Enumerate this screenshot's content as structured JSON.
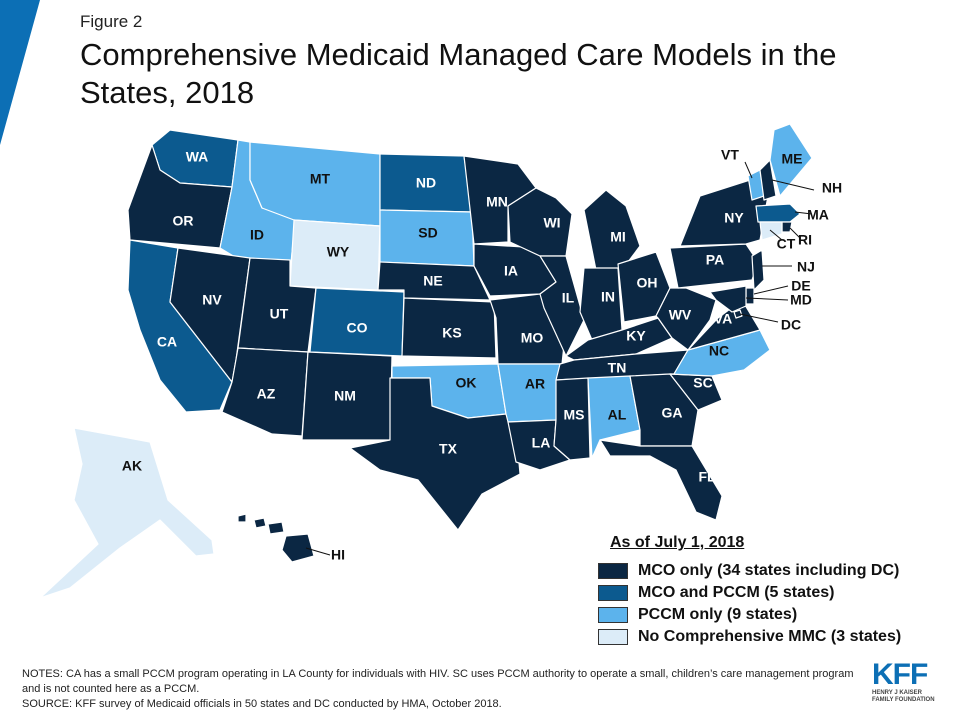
{
  "figure_label": "Figure 2",
  "title": "Comprehensive Medicaid Managed Care Models in the States, 2018",
  "colors": {
    "mco_only": "#0b2743",
    "mco_pccm": "#0c5a8f",
    "pccm_only": "#5cb3ec",
    "none": "#dcecf8",
    "corner_accent": "#0c6fb5"
  },
  "states": [
    {
      "abbr": "WA",
      "category": "mco_pccm"
    },
    {
      "abbr": "OR",
      "category": "mco_only"
    },
    {
      "abbr": "CA",
      "category": "mco_pccm"
    },
    {
      "abbr": "ID",
      "category": "pccm_only"
    },
    {
      "abbr": "NV",
      "category": "mco_only"
    },
    {
      "abbr": "MT",
      "category": "pccm_only"
    },
    {
      "abbr": "WY",
      "category": "none"
    },
    {
      "abbr": "UT",
      "category": "mco_only"
    },
    {
      "abbr": "AZ",
      "category": "mco_only"
    },
    {
      "abbr": "CO",
      "category": "mco_pccm"
    },
    {
      "abbr": "NM",
      "category": "mco_only"
    },
    {
      "abbr": "ND",
      "category": "mco_pccm"
    },
    {
      "abbr": "SD",
      "category": "pccm_only"
    },
    {
      "abbr": "NE",
      "category": "mco_only"
    },
    {
      "abbr": "KS",
      "category": "mco_only"
    },
    {
      "abbr": "OK",
      "category": "pccm_only"
    },
    {
      "abbr": "TX",
      "category": "mco_only"
    },
    {
      "abbr": "MN",
      "category": "mco_only"
    },
    {
      "abbr": "IA",
      "category": "mco_only"
    },
    {
      "abbr": "MO",
      "category": "mco_only"
    },
    {
      "abbr": "AR",
      "category": "pccm_only"
    },
    {
      "abbr": "LA",
      "category": "mco_only"
    },
    {
      "abbr": "WI",
      "category": "mco_only"
    },
    {
      "abbr": "IL",
      "category": "mco_only"
    },
    {
      "abbr": "MI",
      "category": "mco_only"
    },
    {
      "abbr": "IN",
      "category": "mco_only"
    },
    {
      "abbr": "OH",
      "category": "mco_only"
    },
    {
      "abbr": "KY",
      "category": "mco_only"
    },
    {
      "abbr": "TN",
      "category": "mco_only"
    },
    {
      "abbr": "MS",
      "category": "mco_only"
    },
    {
      "abbr": "AL",
      "category": "pccm_only"
    },
    {
      "abbr": "GA",
      "category": "mco_only"
    },
    {
      "abbr": "FL",
      "category": "mco_only"
    },
    {
      "abbr": "SC",
      "category": "mco_only"
    },
    {
      "abbr": "NC",
      "category": "pccm_only"
    },
    {
      "abbr": "VA",
      "category": "mco_only"
    },
    {
      "abbr": "WV",
      "category": "mco_only"
    },
    {
      "abbr": "PA",
      "category": "mco_only"
    },
    {
      "abbr": "NY",
      "category": "mco_only"
    },
    {
      "abbr": "VT",
      "category": "pccm_only"
    },
    {
      "abbr": "NH",
      "category": "mco_only"
    },
    {
      "abbr": "ME",
      "category": "pccm_only"
    },
    {
      "abbr": "MA",
      "category": "mco_pccm"
    },
    {
      "abbr": "RI",
      "category": "mco_only"
    },
    {
      "abbr": "CT",
      "category": "none"
    },
    {
      "abbr": "NJ",
      "category": "mco_only"
    },
    {
      "abbr": "DE",
      "category": "mco_only"
    },
    {
      "abbr": "MD",
      "category": "mco_only"
    },
    {
      "abbr": "DC",
      "category": "mco_only"
    },
    {
      "abbr": "AK",
      "category": "none"
    },
    {
      "abbr": "HI",
      "category": "mco_only"
    }
  ],
  "legend": {
    "title": "As of July 1, 2018",
    "items": [
      {
        "key": "mco_only",
        "label": "MCO only (34 states including DC)"
      },
      {
        "key": "mco_pccm",
        "label": "MCO and PCCM (5 states)"
      },
      {
        "key": "pccm_only",
        "label": "PCCM only (9 states)"
      },
      {
        "key": "none",
        "label": "No Comprehensive MMC (3 states)"
      }
    ]
  },
  "notes": {
    "line1": "NOTES: CA has a small PCCM program operating in LA County for individuals with HIV. SC uses PCCM authority to operate a small, children’s care management program and is not counted here as a PCCM.",
    "line2": "SOURCE: KFF survey of Medicaid officials in 50 states and DC conducted by HMA, October 2018."
  },
  "logo": {
    "wordmark": "KFF",
    "sub1": "HENRY J KAISER",
    "sub2": "FAMILY FOUNDATION"
  }
}
